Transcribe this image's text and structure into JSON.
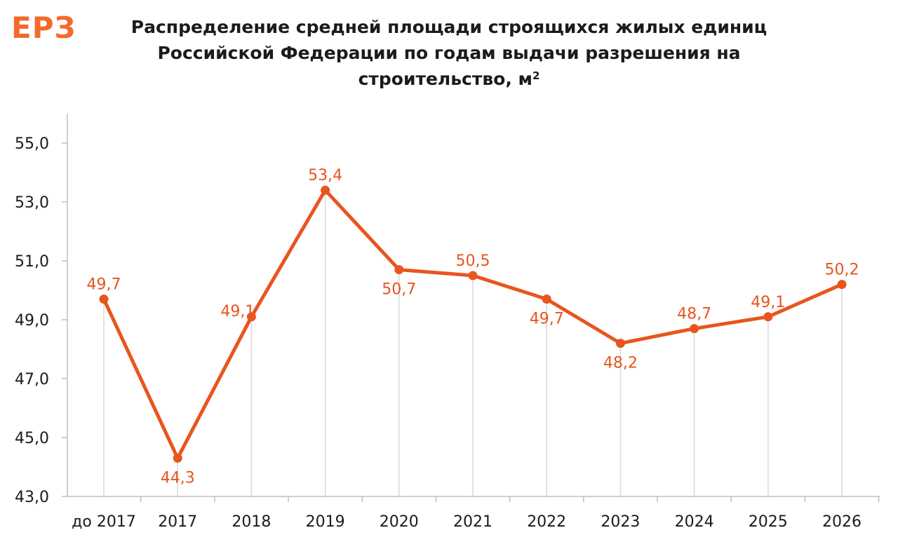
{
  "logo": {
    "text": "ЕРЗ",
    "color": "#f26a2a"
  },
  "header": {
    "title_line1": "Распределение  средней площади строящихся жилых единиц",
    "title_line2": "Российской Федерации  по годам выдачи разрешения  на",
    "title_line3": "строительство, м",
    "title_sup": "2"
  },
  "colors": {
    "series": "#e8551e",
    "label": "#e8551e",
    "grid": "#d9d9d9",
    "axis": "#bfbfbf",
    "text": "#1b1b1b"
  },
  "chart_data": {
    "type": "line",
    "title": "Распределение  средней площади строящихся жилых единиц Российской Федерации  по годам выдачи разрешения  на строительство, м²",
    "xlabel": "",
    "ylabel": "",
    "categories": [
      "до 2017",
      "2017",
      "2018",
      "2019",
      "2020",
      "2021",
      "2022",
      "2023",
      "2024",
      "2025",
      "2026"
    ],
    "series": [
      {
        "values": [
          49.7,
          44.3,
          49.1,
          53.4,
          50.7,
          50.5,
          49.7,
          48.2,
          48.7,
          49.1,
          50.2
        ],
        "labels": [
          "49,7",
          "44,3",
          "49,1",
          "53,4",
          "50,7",
          "50,5",
          "49,7",
          "48,2",
          "48,7",
          "49,1",
          "50,2"
        ],
        "label_positions": [
          "above",
          "below",
          "left",
          "above",
          "below",
          "above",
          "below",
          "below",
          "above",
          "above",
          "above"
        ]
      }
    ],
    "ylim": [
      43.0,
      56.0
    ],
    "yticks": [
      43.0,
      45.0,
      47.0,
      49.0,
      51.0,
      53.0,
      55.0
    ],
    "ytick_labels": [
      "43,0",
      "45,0",
      "47,0",
      "49,0",
      "51,0",
      "53,0",
      "55,0"
    ],
    "grid": "vertical drop lines at each category",
    "legend": "none"
  }
}
